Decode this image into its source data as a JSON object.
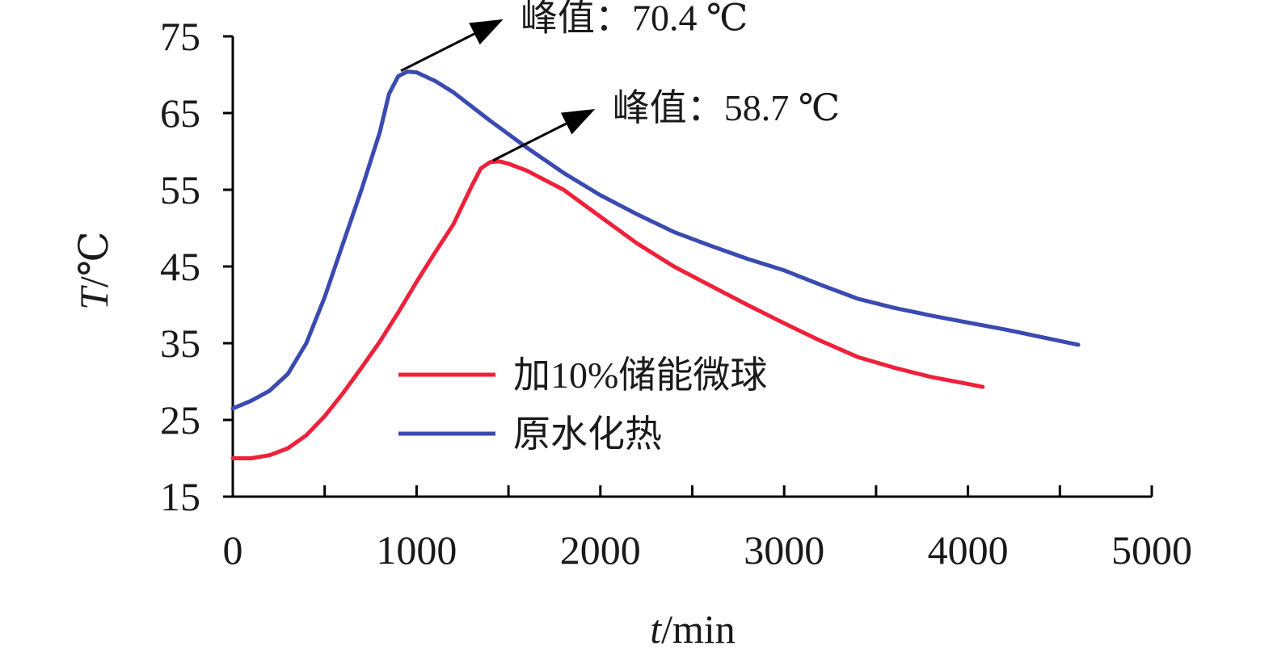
{
  "chart_data": {
    "type": "line",
    "xlabel": {
      "var": "t",
      "unit": "/min"
    },
    "ylabel": {
      "var": "T",
      "unit": "/℃"
    },
    "xlim": [
      0,
      5000
    ],
    "ylim": [
      15,
      75
    ],
    "xticks": [
      0,
      1000,
      2000,
      3000,
      4000,
      5000
    ],
    "yticks": [
      15,
      25,
      35,
      45,
      55,
      65,
      75
    ],
    "legend_position": "center",
    "grid": false,
    "series": [
      {
        "name": "加10%储能微球",
        "color": "#f0203a",
        "points": [
          [
            0,
            20
          ],
          [
            100,
            20
          ],
          [
            200,
            20.4
          ],
          [
            300,
            21.3
          ],
          [
            400,
            23
          ],
          [
            500,
            25.5
          ],
          [
            600,
            28.5
          ],
          [
            700,
            31.8
          ],
          [
            800,
            35.2
          ],
          [
            900,
            39
          ],
          [
            1000,
            43
          ],
          [
            1100,
            46.8
          ],
          [
            1200,
            50.5
          ],
          [
            1300,
            55.5
          ],
          [
            1350,
            57.8
          ],
          [
            1400,
            58.6
          ],
          [
            1450,
            58.7
          ],
          [
            1500,
            58.4
          ],
          [
            1600,
            57.5
          ],
          [
            1800,
            55
          ],
          [
            2000,
            51.5
          ],
          [
            2200,
            48
          ],
          [
            2400,
            45
          ],
          [
            2600,
            42.5
          ],
          [
            2800,
            40
          ],
          [
            3000,
            37.6
          ],
          [
            3200,
            35.3
          ],
          [
            3400,
            33.2
          ],
          [
            3600,
            31.8
          ],
          [
            3800,
            30.6
          ],
          [
            4000,
            29.7
          ],
          [
            4080,
            29.3
          ]
        ]
      },
      {
        "name": "原水化热",
        "color": "#3a4ab0",
        "points": [
          [
            0,
            26.5
          ],
          [
            100,
            27.5
          ],
          [
            200,
            28.8
          ],
          [
            300,
            31
          ],
          [
            400,
            35
          ],
          [
            500,
            41
          ],
          [
            600,
            48
          ],
          [
            700,
            55
          ],
          [
            800,
            62.5
          ],
          [
            850,
            67.5
          ],
          [
            900,
            69.8
          ],
          [
            950,
            70.4
          ],
          [
            1000,
            70.3
          ],
          [
            1100,
            69.2
          ],
          [
            1200,
            67.7
          ],
          [
            1400,
            64
          ],
          [
            1600,
            60.5
          ],
          [
            1800,
            57.2
          ],
          [
            2000,
            54.3
          ],
          [
            2200,
            51.8
          ],
          [
            2400,
            49.5
          ],
          [
            2600,
            47.7
          ],
          [
            2800,
            46
          ],
          [
            3000,
            44.5
          ],
          [
            3200,
            42.6
          ],
          [
            3400,
            40.8
          ],
          [
            3600,
            39.6
          ],
          [
            3800,
            38.6
          ],
          [
            4000,
            37.7
          ],
          [
            4200,
            36.8
          ],
          [
            4400,
            35.8
          ],
          [
            4600,
            34.8
          ]
        ]
      }
    ],
    "annotations": [
      {
        "text": "峰值：70.4 ℃",
        "point": [
          950,
          70.4
        ]
      },
      {
        "text": "峰值：58.7 ℃",
        "point": [
          1450,
          58.7
        ]
      }
    ]
  }
}
